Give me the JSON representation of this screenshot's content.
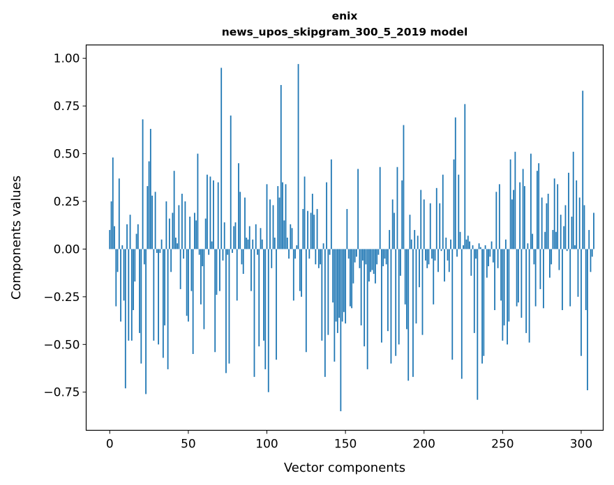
{
  "chart_data": {
    "type": "bar",
    "title": "enix",
    "subtitle": "news_upos_skipgram_300_5_2019 model",
    "xlabel": "Vector components",
    "ylabel": "Components values",
    "xlim": [
      -15,
      314
    ],
    "ylim": [
      -0.95,
      1.07
    ],
    "x_ticks": [
      0,
      50,
      100,
      150,
      200,
      250,
      300
    ],
    "x_tick_labels": [
      "0",
      "50",
      "100",
      "150",
      "200",
      "250",
      "300"
    ],
    "y_ticks": [
      1.0,
      0.75,
      0.5,
      0.25,
      0.0,
      -0.25,
      -0.5,
      -0.75
    ],
    "y_tick_labels": [
      "1.00",
      "0.75",
      "0.50",
      "0.25",
      "0.00",
      "−0.25",
      "−0.50",
      "−0.75"
    ],
    "grid": false,
    "bar_color": "#1f77b4",
    "values": [
      0.1,
      0.25,
      0.48,
      0.12,
      -0.3,
      -0.12,
      0.37,
      -0.38,
      0.02,
      -0.27,
      -0.73,
      0.13,
      -0.48,
      0.18,
      -0.48,
      -0.32,
      -0.17,
      0.08,
      0.13,
      -0.44,
      -0.6,
      0.68,
      -0.08,
      -0.76,
      0.33,
      0.46,
      0.63,
      0.28,
      -0.48,
      0.3,
      -0.02,
      -0.5,
      -0.02,
      0.05,
      -0.57,
      -0.4,
      0.25,
      -0.63,
      0.16,
      -0.12,
      0.19,
      0.41,
      0.06,
      0.03,
      0.23,
      -0.21,
      0.29,
      -0.05,
      0.25,
      -0.35,
      -0.38,
      0.17,
      -0.22,
      -0.55,
      0.19,
      0.15,
      0.5,
      -0.03,
      -0.29,
      -0.09,
      -0.42,
      0.16,
      0.39,
      -0.03,
      0.38,
      0.04,
      0.36,
      -0.54,
      -0.24,
      0.35,
      -0.22,
      0.95,
      -0.06,
      0.14,
      -0.65,
      -0.03,
      -0.6,
      0.7,
      -0.02,
      0.12,
      0.14,
      -0.27,
      0.45,
      0.3,
      -0.08,
      -0.13,
      0.27,
      0.06,
      0.05,
      0.12,
      -0.22,
      0.05,
      -0.67,
      0.13,
      -0.03,
      -0.51,
      0.11,
      0.05,
      -0.48,
      -0.63,
      0.34,
      -0.75,
      0.26,
      -0.1,
      0.23,
      0.06,
      -0.58,
      0.33,
      0.27,
      0.86,
      0.35,
      0.15,
      0.34,
      0.06,
      -0.05,
      0.13,
      0.11,
      -0.27,
      -0.05,
      0.02,
      0.97,
      -0.22,
      -0.25,
      0.21,
      0.38,
      -0.54,
      0.2,
      -0.05,
      0.19,
      0.29,
      0.18,
      -0.08,
      0.21,
      -0.1,
      -0.08,
      -0.48,
      0.03,
      -0.67,
      0.35,
      -0.45,
      -0.03,
      0.47,
      -0.28,
      -0.59,
      -0.38,
      -0.44,
      -0.36,
      -0.85,
      -0.38,
      -0.33,
      -0.39,
      0.21,
      -0.05,
      -0.3,
      -0.31,
      -0.18,
      -0.07,
      -0.04,
      0.42,
      -0.1,
      -0.4,
      -0.06,
      -0.51,
      -0.08,
      -0.63,
      -0.17,
      -0.12,
      -0.11,
      -0.13,
      -0.18,
      -0.08,
      -0.03,
      0.43,
      -0.49,
      -0.09,
      -0.05,
      -0.08,
      -0.43,
      0.1,
      -0.6,
      0.26,
      0.19,
      -0.56,
      0.43,
      -0.5,
      -0.14,
      0.36,
      0.65,
      -0.29,
      -0.42,
      -0.69,
      0.18,
      0.05,
      -0.67,
      0.1,
      -0.39,
      0.07,
      -0.2,
      0.31,
      -0.45,
      0.26,
      -0.06,
      -0.1,
      -0.08,
      0.24,
      -0.05,
      -0.29,
      -0.06,
      0.32,
      -0.12,
      0.24,
      -0.01,
      0.39,
      -0.17,
      0.06,
      -0.06,
      -0.12,
      0.05,
      -0.58,
      0.47,
      0.69,
      -0.04,
      0.39,
      0.09,
      -0.68,
      0.02,
      0.76,
      0.05,
      0.07,
      0.04,
      -0.14,
      0.02,
      -0.44,
      -0.05,
      -0.79,
      0.03,
      0.01,
      -0.6,
      -0.56,
      0.02,
      -0.15,
      -0.09,
      -0.04,
      0.04,
      -0.07,
      -0.32,
      0.3,
      -0.1,
      0.34,
      -0.27,
      -0.48,
      -0.4,
      0.05,
      -0.5,
      -0.38,
      0.47,
      0.26,
      0.31,
      0.51,
      -0.3,
      -0.28,
      0.35,
      -0.36,
      0.42,
      0.33,
      -0.44,
      0.03,
      -0.49,
      0.5,
      0.08,
      -0.08,
      -0.3,
      0.41,
      0.45,
      -0.21,
      0.27,
      -0.31,
      0.09,
      0.24,
      0.29,
      -0.15,
      -0.08,
      0.1,
      0.37,
      0.09,
      0.34,
      -0.11,
      0.18,
      -0.32,
      0.12,
      0.23,
      -0.01,
      0.4,
      -0.3,
      0.17,
      0.51,
      0.02,
      0.36,
      -0.25,
      0.27,
      -0.56,
      0.83,
      0.23,
      -0.32,
      -0.74,
      0.1,
      -0.12,
      -0.04,
      0.19
    ]
  }
}
